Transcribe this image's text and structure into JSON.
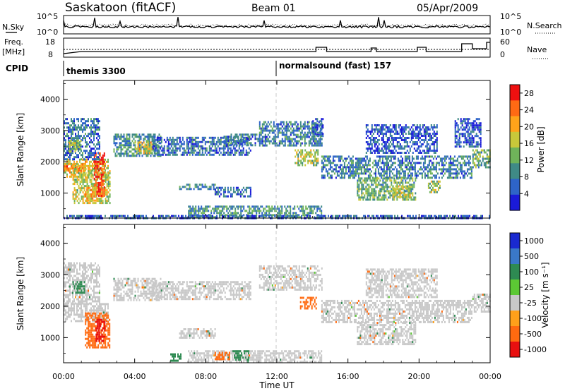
{
  "header": {
    "title": "Saskatoon (fitACF)",
    "beam": "Beam 01",
    "date": "05/Apr/2009"
  },
  "summary": {
    "nsky_label": "N.Sky",
    "nsky_ticks": [
      "10^5",
      "10^0"
    ],
    "nsearch_label": "N.Search",
    "nsearch_ticks": [
      "10^5",
      "10^0"
    ],
    "freq_label_1": "Freq.",
    "freq_label_2": "[MHz]",
    "freq_ticks": [
      "18",
      "8"
    ],
    "nave_label": "Nave",
    "nave_ticks": [
      "60",
      "0"
    ],
    "cpid_label": "CPID",
    "cpid_modes": [
      {
        "label": "themis 3300",
        "start_hour": 0
      },
      {
        "label": "normalsound (fast) 157",
        "start_hour": 12
      }
    ]
  },
  "x_axis": {
    "label": "Time UT",
    "ticks": [
      "00:00",
      "04:00",
      "08:00",
      "12:00",
      "16:00",
      "20:00",
      "00:00"
    ],
    "range_hours": [
      0,
      24
    ]
  },
  "chart_data": [
    {
      "type": "heatmap",
      "name": "power",
      "ylabel": "Slant Range [km]",
      "yticks": [
        "1000",
        "2000",
        "3000",
        "4000"
      ],
      "ylim": [
        200,
        4600
      ],
      "xlim": [
        0,
        24
      ],
      "colorbar_label": "Power [dB]",
      "colorbar_ticks": [
        "4",
        "8",
        "12",
        "16",
        "20",
        "24",
        "28"
      ],
      "colorbar_range": [
        0,
        30
      ],
      "colors": [
        "#1a1ad8",
        "#2e64c8",
        "#3f8a86",
        "#6fb35a",
        "#c8c83a",
        "#ffa31a",
        "#ff6a14",
        "#ef1010"
      ],
      "blobs": [
        {
          "t0": 0.0,
          "t1": 2.5,
          "r0": 1550,
          "r1": 2100,
          "v": 18
        },
        {
          "t0": 0.0,
          "t1": 1.2,
          "r0": 1700,
          "r1": 1950,
          "v": 22
        },
        {
          "t0": 0.5,
          "t1": 2.6,
          "r0": 700,
          "r1": 1800,
          "v": 16
        },
        {
          "t0": 1.7,
          "t1": 2.3,
          "r0": 900,
          "r1": 2300,
          "v": 27
        },
        {
          "t0": 1.2,
          "t1": 1.9,
          "r0": 750,
          "r1": 1200,
          "v": 20
        },
        {
          "t0": 0.0,
          "t1": 2.0,
          "r0": 2100,
          "r1": 3400,
          "v": 7
        },
        {
          "t0": 0.3,
          "t1": 1.0,
          "r0": 2300,
          "r1": 2700,
          "v": 14
        },
        {
          "t0": 2.8,
          "t1": 5.5,
          "r0": 2200,
          "r1": 2900,
          "v": 9
        },
        {
          "t0": 4.0,
          "t1": 5.0,
          "r0": 2300,
          "r1": 2650,
          "v": 18
        },
        {
          "t0": 5.0,
          "t1": 10.5,
          "r0": 2200,
          "r1": 2800,
          "v": 7
        },
        {
          "t0": 9.0,
          "t1": 11.0,
          "r0": 2500,
          "r1": 2900,
          "v": 8
        },
        {
          "t0": 11.0,
          "t1": 14.5,
          "r0": 2500,
          "r1": 3300,
          "v": 8
        },
        {
          "t0": 13.0,
          "t1": 14.3,
          "r0": 1900,
          "r1": 2400,
          "v": 15
        },
        {
          "t0": 14.0,
          "t1": 14.6,
          "r0": 2800,
          "r1": 3400,
          "v": 6
        },
        {
          "t0": 14.5,
          "t1": 23.0,
          "r0": 1500,
          "r1": 2200,
          "v": 8
        },
        {
          "t0": 16.5,
          "t1": 19.8,
          "r0": 800,
          "r1": 1500,
          "v": 12
        },
        {
          "t0": 18.5,
          "t1": 19.5,
          "r0": 900,
          "r1": 1250,
          "v": 16
        },
        {
          "t0": 20.5,
          "t1": 21.2,
          "r0": 1000,
          "r1": 1400,
          "v": 14
        },
        {
          "t0": 23.0,
          "t1": 24.0,
          "r0": 1800,
          "r1": 2400,
          "v": 12
        },
        {
          "t0": 6.5,
          "t1": 8.5,
          "r0": 1100,
          "r1": 1300,
          "v": 9
        },
        {
          "t0": 8.5,
          "t1": 10.5,
          "r0": 900,
          "r1": 1200,
          "v": 6
        },
        {
          "t0": 7.0,
          "t1": 14.5,
          "r0": 220,
          "r1": 600,
          "v": 10
        },
        {
          "t0": 0.0,
          "t1": 24.0,
          "r0": 200,
          "r1": 300,
          "v": 6
        },
        {
          "t0": 17.0,
          "t1": 21.0,
          "r0": 2300,
          "r1": 3200,
          "v": 5
        },
        {
          "t0": 22.0,
          "t1": 23.5,
          "r0": 2500,
          "r1": 3400,
          "v": 5
        }
      ]
    },
    {
      "type": "heatmap",
      "name": "velocity",
      "ylabel": "Slant Range [km]",
      "yticks": [
        "1000",
        "2000",
        "3000",
        "4000"
      ],
      "ylim": [
        200,
        4600
      ],
      "xlim": [
        0,
        24
      ],
      "colorbar_label": "Velocity [m s⁻¹]",
      "colorbar_ticks": [
        "1000",
        "500",
        "100",
        "25",
        "-25",
        "-100",
        "-500",
        "-1000"
      ],
      "colorbar_range": [
        -1200,
        1200
      ],
      "colors": [
        "#1a2ad0",
        "#3a78c8",
        "#2e8a52",
        "#5cc834",
        "#c8c8c8",
        "#ffa01a",
        "#ff6a10",
        "#e81010"
      ],
      "blobs": [
        {
          "t0": 0.0,
          "t1": 2.5,
          "r0": 1550,
          "r1": 2100,
          "v": 0
        },
        {
          "t0": 1.2,
          "t1": 2.6,
          "r0": 700,
          "r1": 1800,
          "v": -300
        },
        {
          "t0": 1.8,
          "t1": 2.3,
          "r0": 900,
          "r1": 1600,
          "v": -700
        },
        {
          "t0": 0.0,
          "t1": 2.0,
          "r0": 2100,
          "r1": 3400,
          "v": 0
        },
        {
          "t0": 0.5,
          "t1": 1.2,
          "r0": 2400,
          "r1": 2800,
          "v": 120
        },
        {
          "t0": 2.8,
          "t1": 5.5,
          "r0": 2200,
          "r1": 2900,
          "v": 0
        },
        {
          "t0": 5.0,
          "t1": 10.5,
          "r0": 2200,
          "r1": 2800,
          "v": 0
        },
        {
          "t0": 11.0,
          "t1": 14.5,
          "r0": 2500,
          "r1": 3300,
          "v": 0
        },
        {
          "t0": 13.3,
          "t1": 14.2,
          "r0": 1900,
          "r1": 2300,
          "v": -200
        },
        {
          "t0": 14.5,
          "t1": 23.0,
          "r0": 1500,
          "r1": 2200,
          "v": 0
        },
        {
          "t0": 16.5,
          "t1": 19.8,
          "r0": 800,
          "r1": 1500,
          "v": 0
        },
        {
          "t0": 23.0,
          "t1": 24.0,
          "r0": 1800,
          "r1": 2400,
          "v": 0
        },
        {
          "t0": 6.5,
          "t1": 8.5,
          "r0": 1000,
          "r1": 1300,
          "v": 0
        },
        {
          "t0": 7.0,
          "t1": 14.5,
          "r0": 220,
          "r1": 600,
          "v": 0
        },
        {
          "t0": 9.5,
          "t1": 10.5,
          "r0": 300,
          "r1": 600,
          "v": 150
        },
        {
          "t0": 8.5,
          "t1": 9.3,
          "r0": 300,
          "r1": 550,
          "v": -200
        },
        {
          "t0": 6.0,
          "t1": 6.6,
          "r0": 250,
          "r1": 500,
          "v": 120
        },
        {
          "t0": 17.0,
          "t1": 21.0,
          "r0": 2300,
          "r1": 3200,
          "v": 0
        }
      ]
    }
  ]
}
